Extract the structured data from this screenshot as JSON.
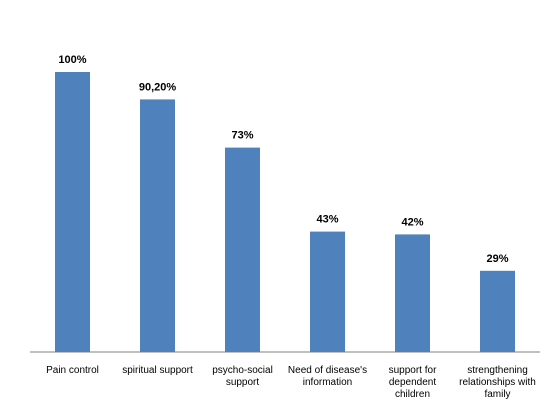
{
  "chart_data": {
    "type": "bar",
    "title": "",
    "xlabel": "",
    "ylabel": "",
    "categories": [
      "Pain control",
      "spiritual support",
      "psycho-social support",
      "Need of disease's information",
      "support for dependent children",
      "strengthening relationships with family"
    ],
    "category_lines": [
      [
        "Pain control"
      ],
      [
        "spiritual support"
      ],
      [
        "psycho-social",
        "support"
      ],
      [
        "Need of disease's",
        "information"
      ],
      [
        "support for",
        "dependent",
        "children"
      ],
      [
        "strengthening",
        "relationships with",
        "family"
      ]
    ],
    "values": [
      100,
      90.2,
      73,
      43,
      42,
      29
    ],
    "data_labels": [
      "100%",
      "90,20%",
      "73%",
      "43%",
      "42%",
      "29%"
    ],
    "ylim": [
      0,
      100
    ],
    "grid": false,
    "legend": "none",
    "bar_color": "#4f81bd"
  }
}
